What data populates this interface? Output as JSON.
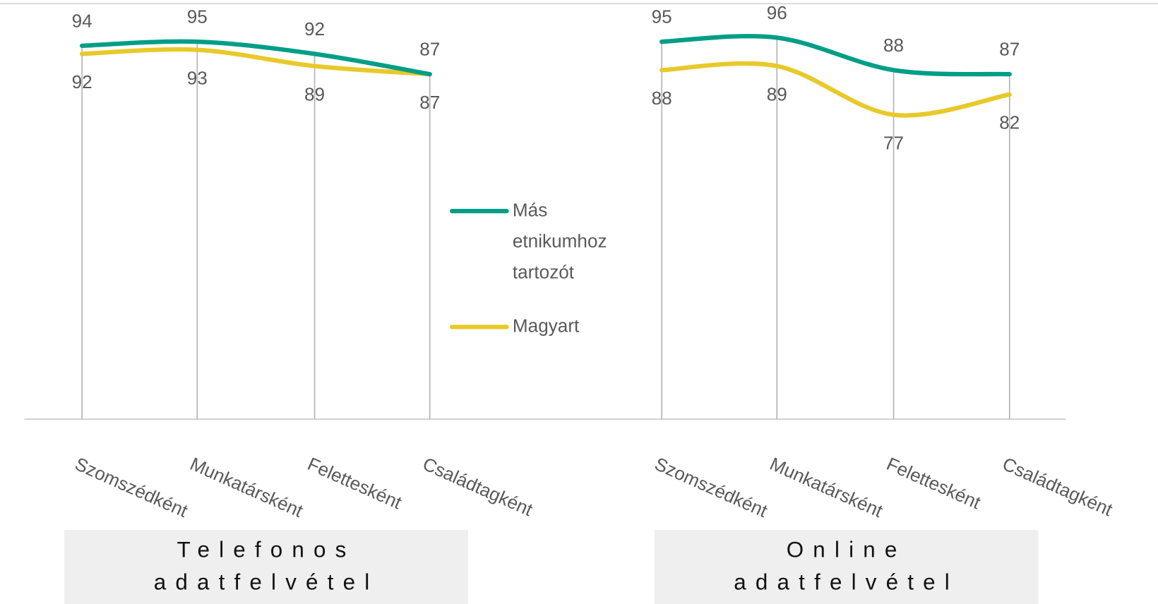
{
  "chart_data": {
    "type": "line",
    "categories": [
      "Szomszédként",
      "Munkatársként",
      "Felettesként",
      "Családtagként",
      "Szomszédként",
      "Munkatársként",
      "Felettesként",
      "Családtagként"
    ],
    "series": [
      {
        "name": "Más etnikumhoz tartozót",
        "color": "#009e86",
        "values": [
          94,
          95,
          92,
          87,
          95,
          96,
          88,
          87
        ]
      },
      {
        "name": "Magyart",
        "color": "#e8c92a",
        "values": [
          92,
          93,
          89,
          87,
          88,
          89,
          77,
          82
        ]
      }
    ],
    "panels": [
      "Telefonos adatfelvétel",
      "Online adatfelvétel"
    ],
    "ylim": [
      0,
      100
    ]
  }
}
